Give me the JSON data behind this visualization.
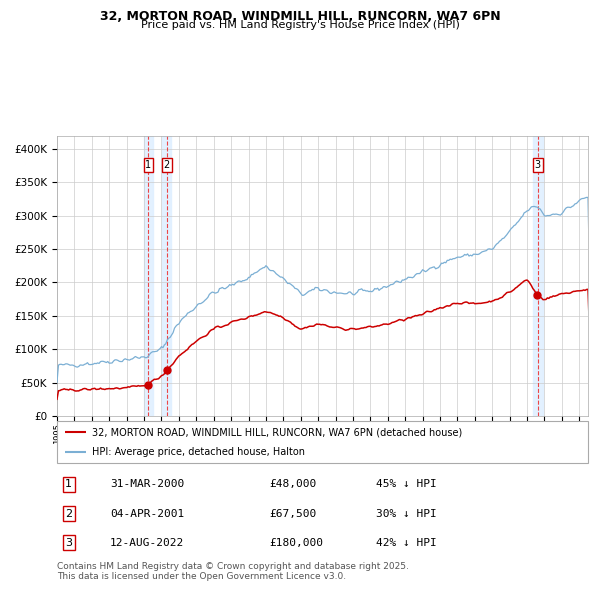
{
  "title": "32, MORTON ROAD, WINDMILL HILL, RUNCORN, WA7 6PN",
  "subtitle": "Price paid vs. HM Land Registry's House Price Index (HPI)",
  "background_color": "#ffffff",
  "plot_bg_color": "#ffffff",
  "grid_color": "#cccccc",
  "transactions": [
    {
      "num": 1,
      "date_label": "31-MAR-2000",
      "price": 48000,
      "pct": "45%",
      "year_x": 2000.25
    },
    {
      "num": 2,
      "date_label": "04-APR-2001",
      "price": 67500,
      "pct": "30%",
      "year_x": 2001.3
    },
    {
      "num": 3,
      "date_label": "12-AUG-2022",
      "price": 180000,
      "pct": "42%",
      "year_x": 2022.62
    }
  ],
  "legend_label_red": "32, MORTON ROAD, WINDMILL HILL, RUNCORN, WA7 6PN (detached house)",
  "legend_label_blue": "HPI: Average price, detached house, Halton",
  "footer": "Contains HM Land Registry data © Crown copyright and database right 2025.\nThis data is licensed under the Open Government Licence v3.0.",
  "xmin": 1995,
  "xmax": 2025.5,
  "ymin": 0,
  "ymax": 420000,
  "red_color": "#cc0000",
  "blue_color": "#7bafd4",
  "vline_color": "#ee3333",
  "highlight_color": "#ddeeff"
}
